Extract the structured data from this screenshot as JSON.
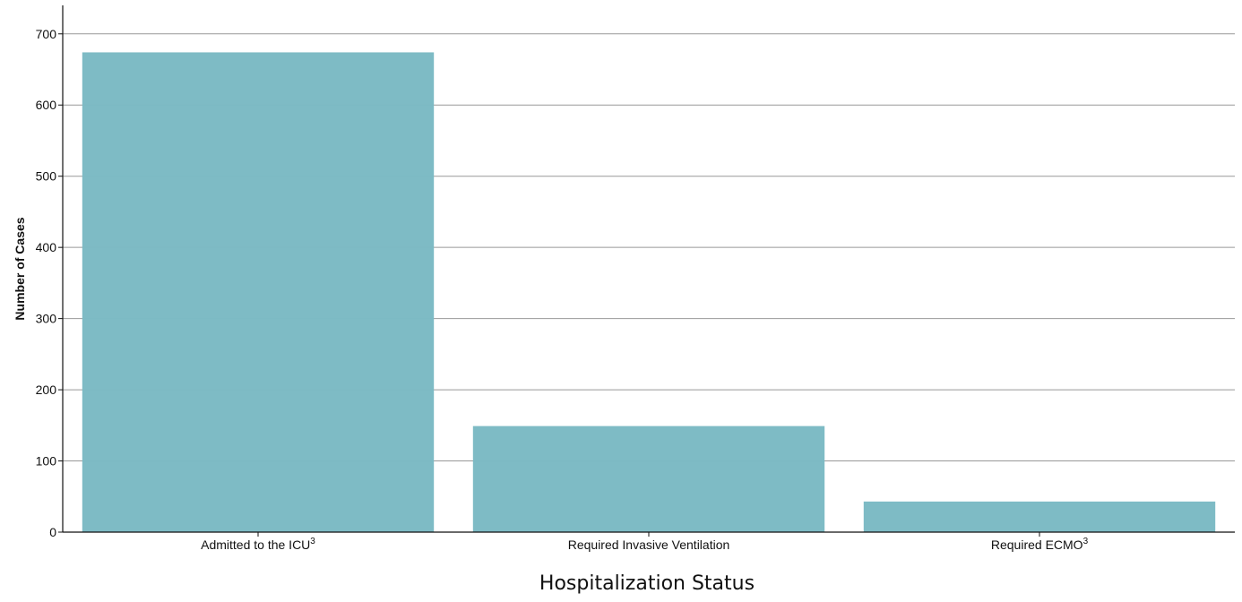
{
  "chart_data": {
    "type": "bar",
    "title": "",
    "xlabel": "Hospitalization Status",
    "ylabel": "Number of Cases",
    "categories": [
      {
        "label": "Admitted to the ICU",
        "superscript": "3"
      },
      {
        "label": "Required Invasive Ventilation",
        "superscript": ""
      },
      {
        "label": "Required ECMO",
        "superscript": "3"
      }
    ],
    "values": [
      674,
      149,
      43
    ],
    "ylim": [
      0,
      740
    ],
    "yticks": [
      0,
      100,
      200,
      300,
      400,
      500,
      600,
      700
    ],
    "grid": true,
    "bar_color": "#7bbac4"
  }
}
